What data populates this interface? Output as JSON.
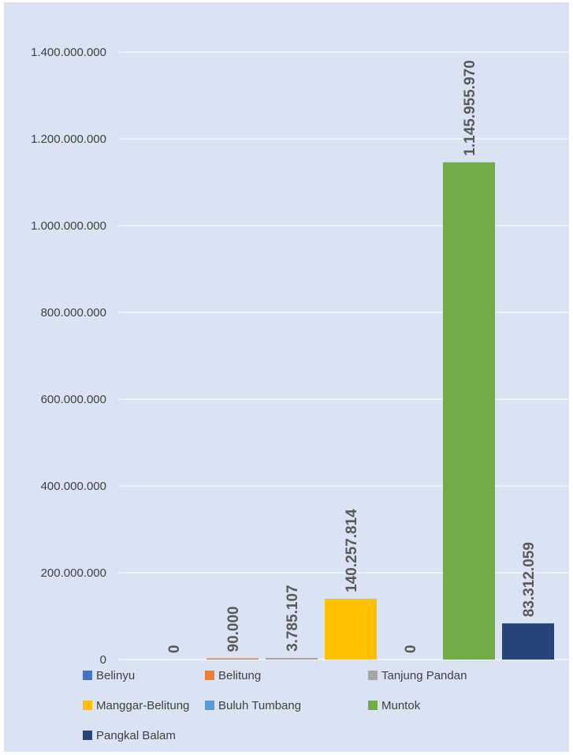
{
  "chart_data": {
    "type": "bar",
    "title": "",
    "xlabel": "",
    "ylabel": "",
    "ylim": [
      0,
      1400000000
    ],
    "yticks": [
      0,
      200000000,
      400000000,
      600000000,
      800000000,
      1000000000,
      1200000000,
      1400000000
    ],
    "ytick_labels": [
      "0",
      "200.000.000",
      "400.000.000",
      "600.000.000",
      "800.000.000",
      "1.000.000.000",
      "1.200.000.000",
      "1.400.000.000"
    ],
    "grid": true,
    "legend_position": "bottom",
    "series": [
      {
        "name": "Belinyu",
        "value": 0,
        "label": "0",
        "color": "#4472c4"
      },
      {
        "name": "Belitung",
        "value": 90000,
        "label": "90.000",
        "color": "#ed7d31"
      },
      {
        "name": "Tanjung Pandan",
        "value": 3785107,
        "label": "3.785.107",
        "color": "#a5a5a5"
      },
      {
        "name": "Manggar-Belitung",
        "value": 140257814,
        "label": "140.257.814",
        "color": "#ffc000"
      },
      {
        "name": "Buluh Tumbang",
        "value": 0,
        "label": "0",
        "color": "#5b9bd5"
      },
      {
        "name": "Muntok",
        "value": 1145955970,
        "label": "1.145.955.970",
        "color": "#70ad47"
      },
      {
        "name": "Pangkal Balam",
        "value": 83312059,
        "label": "83.312.059",
        "color": "#264478"
      }
    ]
  }
}
